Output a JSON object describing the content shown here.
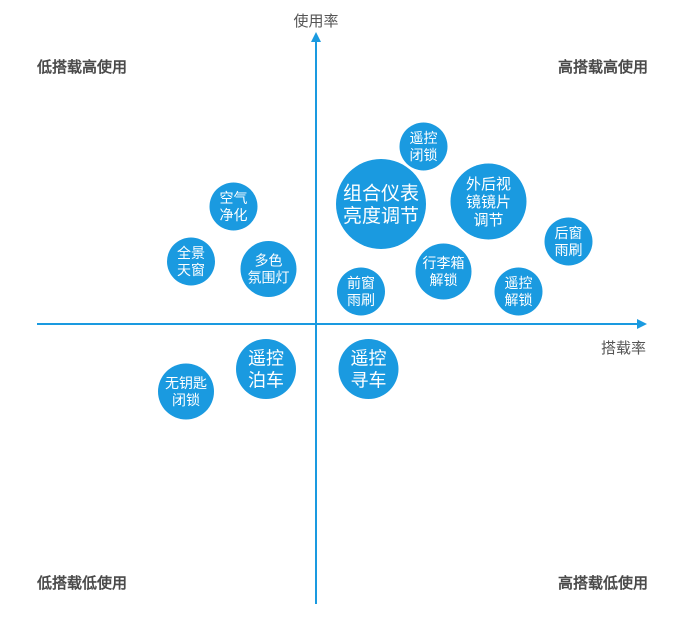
{
  "chart_data": {
    "type": "scatter",
    "title": "",
    "xlabel": "搭载率",
    "ylabel": "使用率",
    "quadrants": {
      "top_left": "低搭载高使用",
      "top_right": "高搭载高使用",
      "bottom_left": "低搭载低使用",
      "bottom_right": "高搭载低使用"
    },
    "xlim": [
      -100,
      100
    ],
    "ylim": [
      -100,
      100
    ],
    "color": "#1a9ae0",
    "axis_color": "#1a9ae0",
    "points": [
      {
        "label": [
          "遥控",
          "闭锁"
        ],
        "x": 43,
        "y": 71,
        "r": 24
      },
      {
        "label": [
          "组合仪表",
          "亮度调节"
        ],
        "x": 26,
        "y": 48,
        "r": 45
      },
      {
        "label": [
          "外后视",
          "镜镜片",
          "调节"
        ],
        "x": 69,
        "y": 49,
        "r": 38
      },
      {
        "label": [
          "空气",
          "净化"
        ],
        "x": -33,
        "y": 47,
        "r": 24
      },
      {
        "label": [
          "后窗",
          "雨刷"
        ],
        "x": 101,
        "y": 33,
        "r": 24
      },
      {
        "label": [
          "全景",
          "天窗"
        ],
        "x": -50,
        "y": 25,
        "r": 24
      },
      {
        "label": [
          "多色",
          "氛围灯"
        ],
        "x": -19,
        "y": 22,
        "r": 28
      },
      {
        "label": [
          "行李箱",
          "解锁"
        ],
        "x": 51,
        "y": 21,
        "r": 28
      },
      {
        "label": [
          "前窗",
          "雨刷"
        ],
        "x": 18,
        "y": 13,
        "r": 24
      },
      {
        "label": [
          "遥控",
          "解锁"
        ],
        "x": 81,
        "y": 13,
        "r": 24
      },
      {
        "label": [
          "遥控",
          "泊车"
        ],
        "x": -20,
        "y": -18,
        "r": 30
      },
      {
        "label": [
          "遥控",
          "寻车"
        ],
        "x": 21,
        "y": -18,
        "r": 30
      },
      {
        "label": [
          "无钥匙",
          "闭锁"
        ],
        "x": -52,
        "y": -27,
        "r": 28
      }
    ]
  }
}
